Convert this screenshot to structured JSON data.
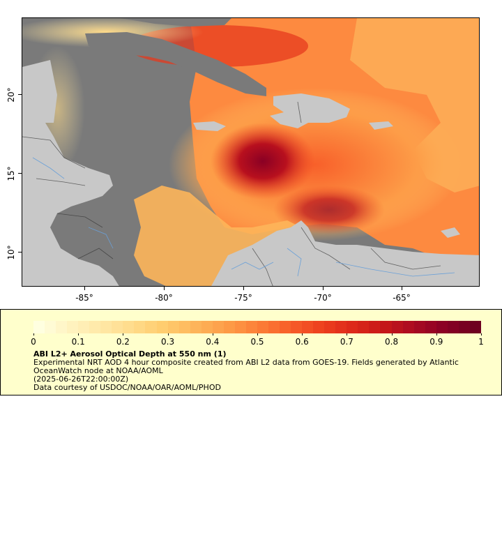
{
  "map": {
    "y_ticks": [
      {
        "label": "20°",
        "lat": 20
      },
      {
        "label": "15°",
        "lat": 15
      },
      {
        "label": "10°",
        "lat": 10
      }
    ],
    "x_ticks": [
      {
        "label": "-85°",
        "lon": -85
      },
      {
        "label": "-80°",
        "lon": -80
      },
      {
        "label": "-75°",
        "lon": -75
      },
      {
        "label": "-70°",
        "lon": -70
      },
      {
        "label": "-65°",
        "lon": -65
      }
    ],
    "extent": {
      "lon_min": -89,
      "lon_max": -60.2,
      "lat_min": 8,
      "lat_max": 24.8
    },
    "colors": {
      "ocean_nodata": "#7a7a7a",
      "land": "#c8c8c8",
      "border": "#1a1a1a",
      "rivers": "#6aa0d8"
    }
  },
  "colorbar": {
    "labels": [
      "0",
      "0.1",
      "0.2",
      "0.3",
      "0.4",
      "0.5",
      "0.6",
      "0.7",
      "0.8",
      "0.9",
      "1"
    ],
    "colors": [
      "#ffffe0",
      "#fff3c0",
      "#ffe8a6",
      "#ffdb8a",
      "#ffcc6e",
      "#fdb55a",
      "#fd9d48",
      "#fc8038",
      "#f8602a",
      "#ee421f",
      "#de2a1a",
      "#c81818",
      "#aa0a22",
      "#8a0024",
      "#6e0020"
    ]
  },
  "legend": {
    "title": "ABI L2+ Aerosol Optical Depth at 550 nm (1)",
    "line1": "Experimental NRT AOD 4 hour composite created from ABI L2 data from GOES-19. Fields generated by Atlantic",
    "line2": "OceanWatch node at NOAA/AOML",
    "line3": "(2025-06-26T22:00:00Z)",
    "line4": "Data courtesy of USDOC/NOAA/OAR/AOML/PHOD"
  }
}
